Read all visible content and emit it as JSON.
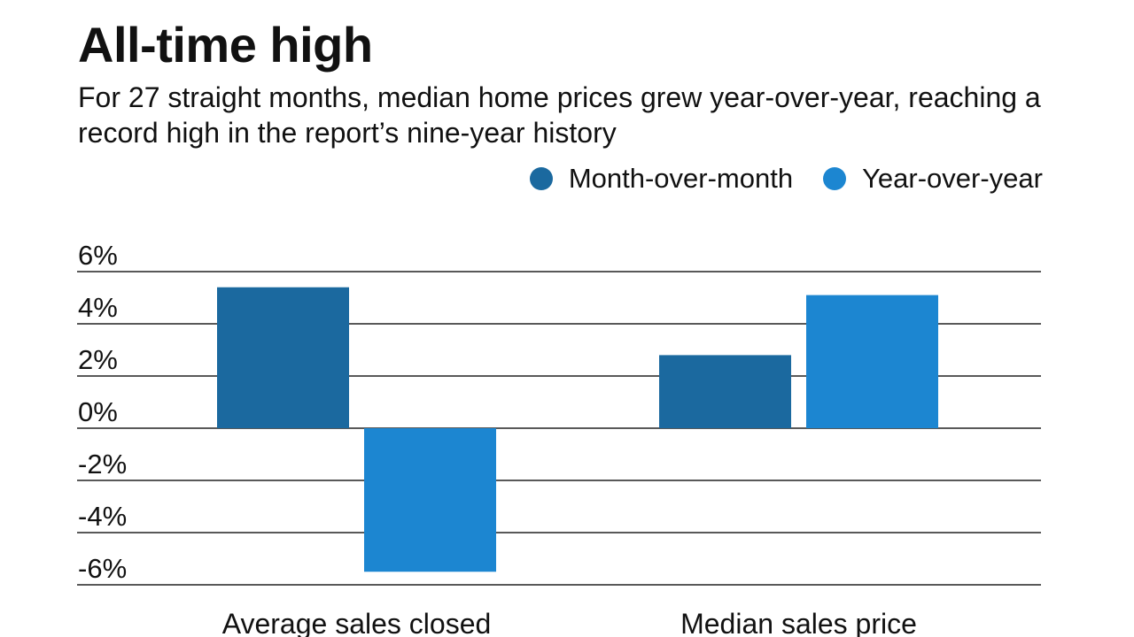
{
  "title": "All-time high",
  "subtitle": "For 27 straight months, median home prices grew year-over-year, reaching a record high in the report’s nine-year history",
  "colors": {
    "month_over_month": "#1b699f",
    "year_over_year": "#1c86d1"
  },
  "chart_data": {
    "type": "bar",
    "title": "All-time high",
    "categories": [
      "Average sales closed",
      "Median sales price"
    ],
    "series": [
      {
        "name": "Month-over-month",
        "values": [
          5.4,
          2.8
        ]
      },
      {
        "name": "Year-over-year",
        "values": [
          -5.5,
          5.1
        ]
      }
    ],
    "ylim": [
      -6,
      6
    ],
    "yticks": [
      6,
      4,
      2,
      0,
      -2,
      -4,
      -6
    ],
    "ytick_labels": [
      "6%",
      "4%",
      "2%",
      "0%",
      "-2%",
      "-4%",
      "-6%"
    ],
    "grid": true,
    "legend": "top-right",
    "xlabel": "",
    "ylabel": ""
  }
}
